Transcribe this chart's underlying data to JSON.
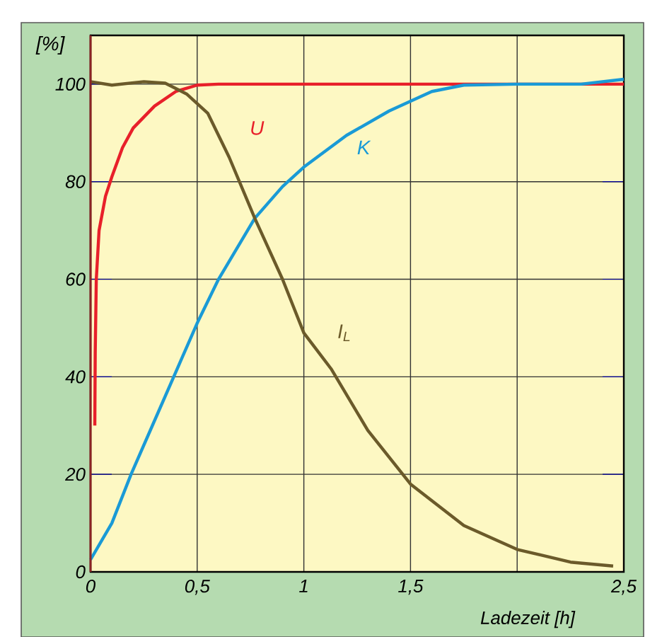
{
  "chart_data": {
    "type": "line",
    "xlabel": "Ladezeit [h]",
    "ylabel": "[%]",
    "xlim": [
      0,
      2.5
    ],
    "ylim": [
      0,
      110
    ],
    "xticks": [
      0,
      {
        "value": 0.5,
        "label": "0,5"
      },
      1,
      {
        "value": 1.5,
        "label": "1,5"
      },
      {
        "value": 2,
        "label": null
      },
      {
        "value": 2.5,
        "label": "2,5"
      }
    ],
    "yticks": [
      0,
      20,
      40,
      60,
      80,
      100
    ],
    "grid": true,
    "legend": false,
    "line_style": "solid",
    "marker": "none",
    "series": [
      {
        "name": "U",
        "color": "#e8202a",
        "x": [
          0.02,
          0.022,
          0.027,
          0.04,
          0.07,
          0.1,
          0.15,
          0.2,
          0.3,
          0.4,
          0.5,
          0.6,
          0.8,
          1,
          1.5,
          2,
          2.5
        ],
        "values": [
          30,
          45,
          60,
          70,
          77,
          81,
          87,
          91,
          95.5,
          98.5,
          99.8,
          100,
          100,
          100,
          100,
          100,
          100
        ]
      },
      {
        "name": "K",
        "color": "#1a9ad6",
        "x": [
          0,
          0.1,
          0.19,
          0.29,
          0.39,
          0.5,
          0.6,
          0.77,
          0.9,
          1,
          1.2,
          1.4,
          1.5,
          1.6,
          1.75,
          2,
          2.3,
          2.5
        ],
        "values": [
          2.5,
          10,
          20,
          30,
          40,
          51,
          60,
          72.5,
          79,
          83,
          89.5,
          94.5,
          96.5,
          98.5,
          99.8,
          100,
          100,
          101
        ]
      },
      {
        "name": "I$_{L}$",
        "color": "#6b5a2a",
        "x": [
          0,
          0.1,
          0.25,
          0.35,
          0.45,
          0.55,
          0.65,
          0.77,
          0.9,
          1,
          1.13,
          1.3,
          1.5,
          1.75,
          2,
          2.25,
          2.45
        ],
        "values": [
          100.5,
          99.8,
          100.5,
          100.2,
          98,
          94,
          85,
          72.5,
          60,
          49,
          41.5,
          29,
          18,
          9.5,
          4.6,
          2,
          1.2
        ]
      }
    ]
  }
}
